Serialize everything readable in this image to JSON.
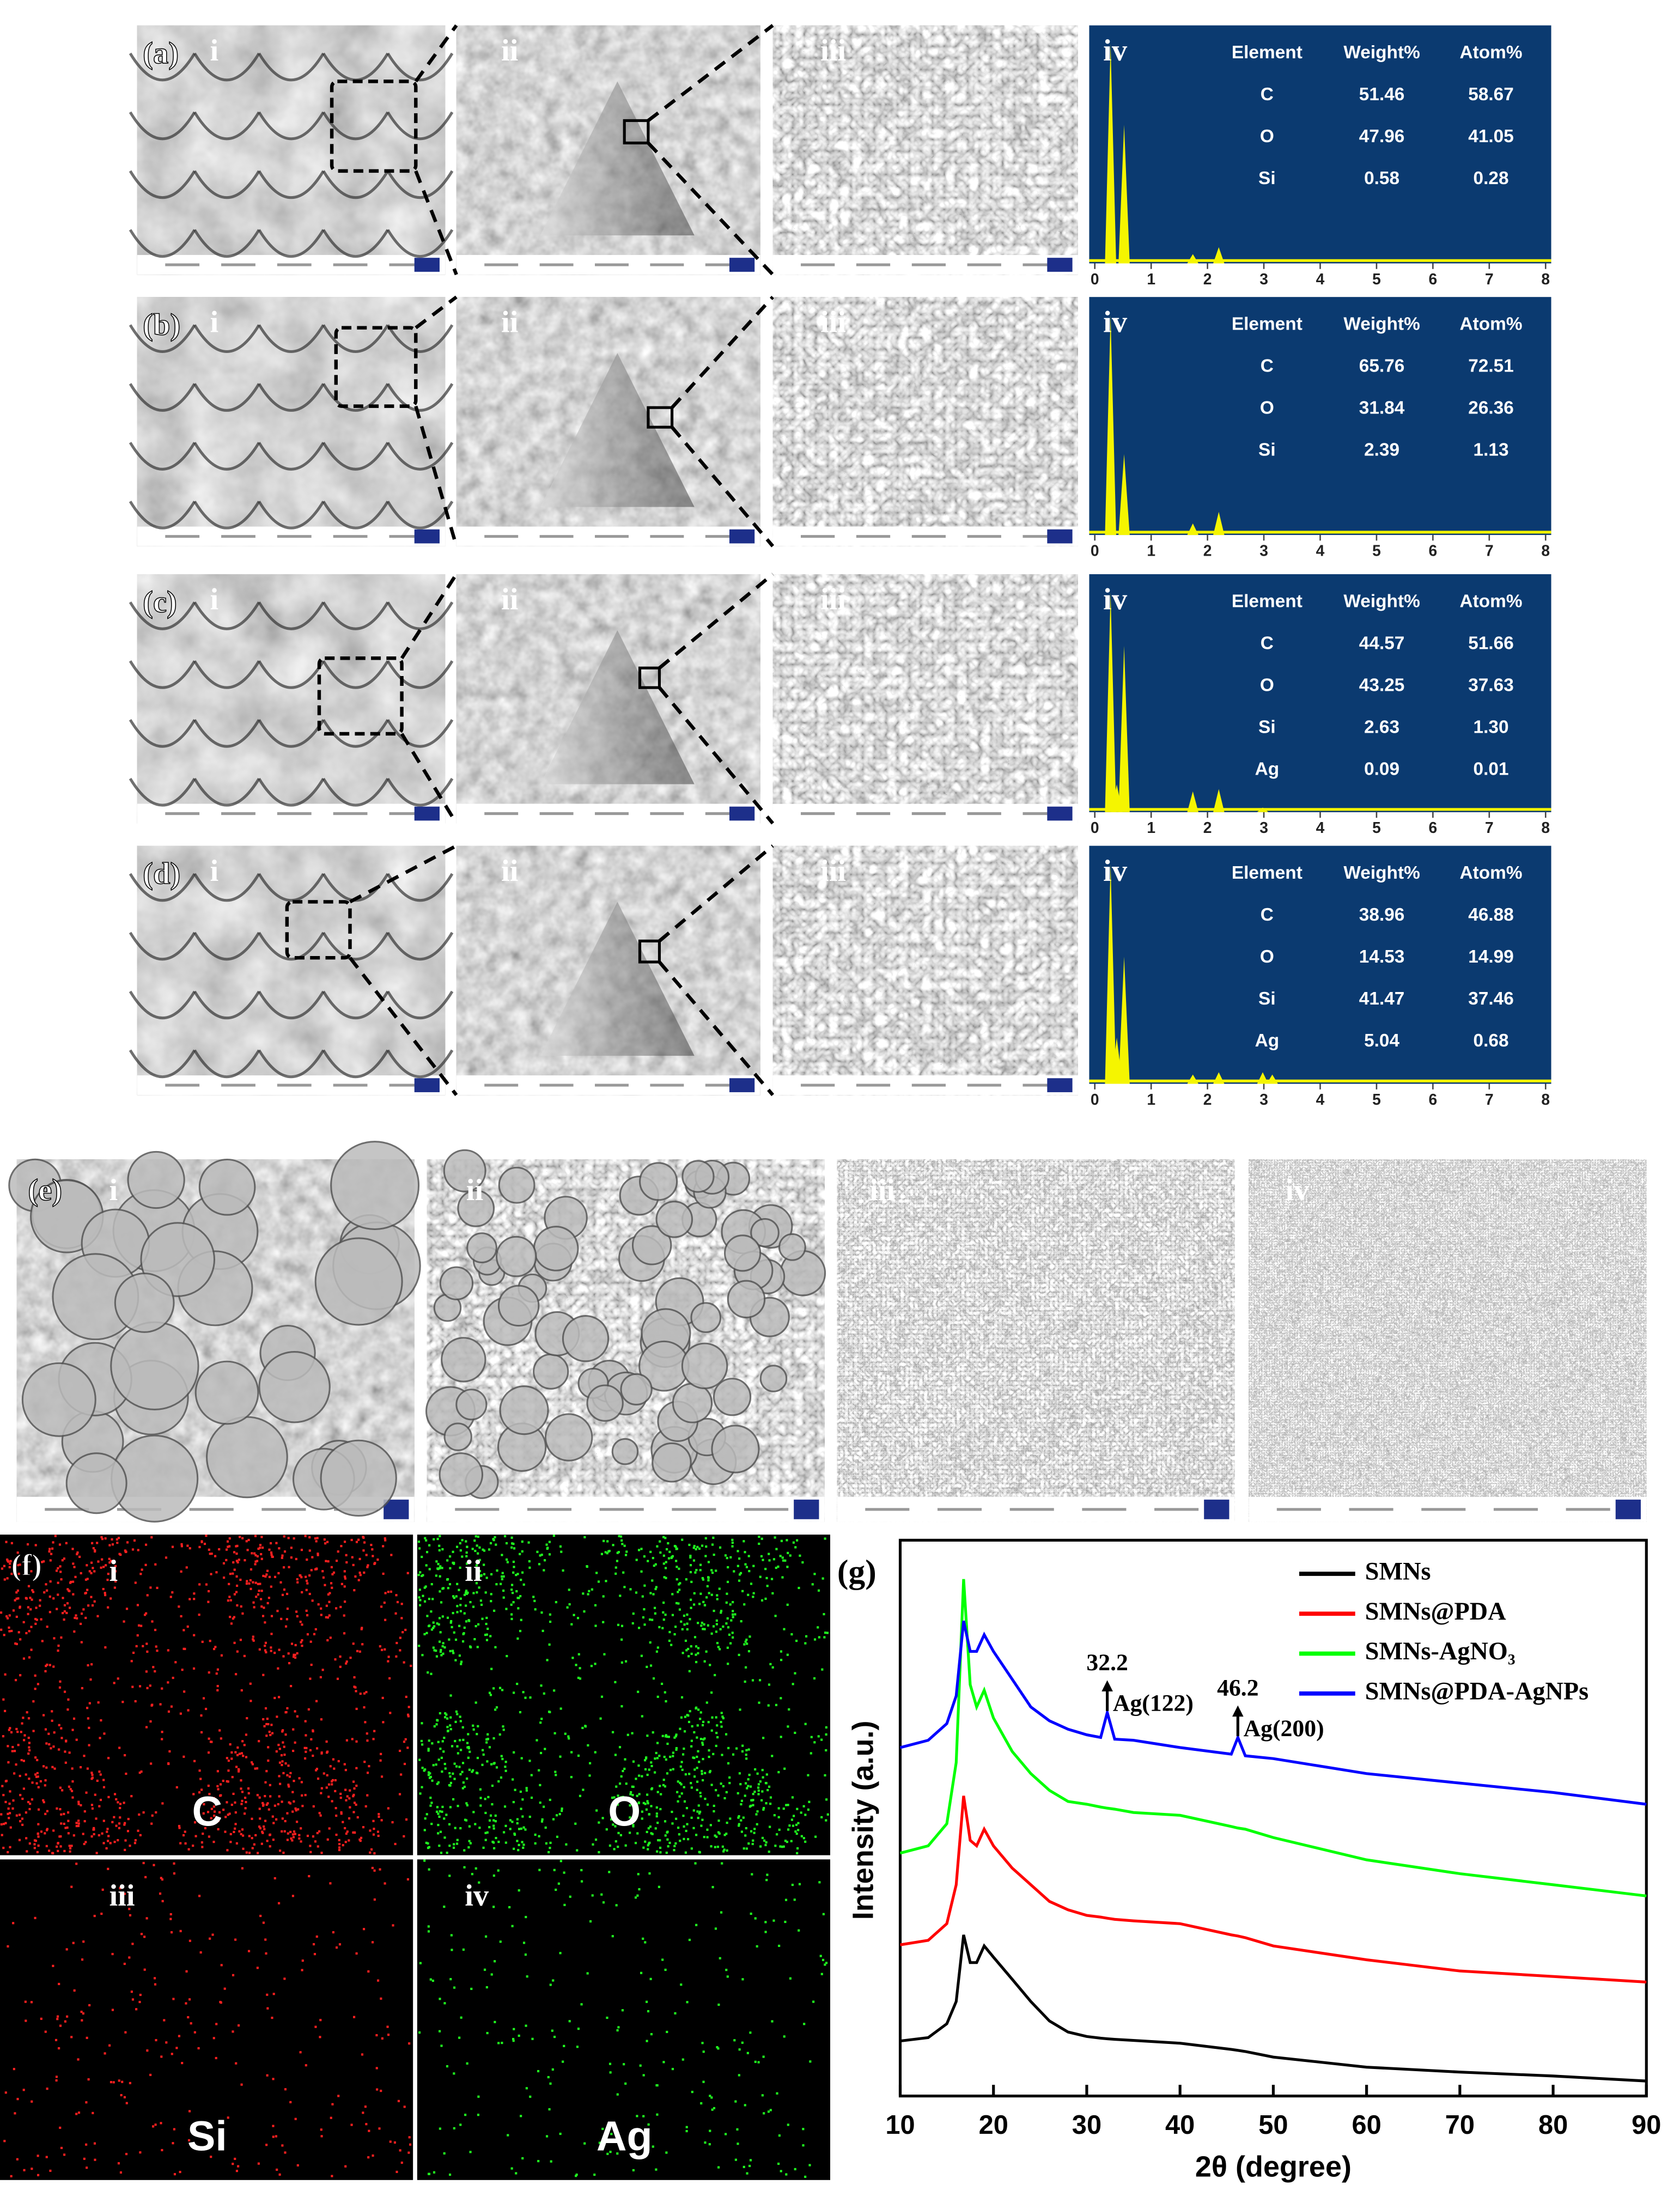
{
  "sem_rows": [
    {
      "label": "(a)",
      "sub_labels": [
        "i",
        "ii",
        "iii",
        "iv"
      ],
      "eds": {
        "header": [
          "Element",
          "Weight%",
          "Atom%"
        ],
        "rows": [
          [
            "C",
            "51.46",
            "58.67"
          ],
          [
            "O",
            "47.96",
            "41.05"
          ],
          [
            "Si",
            "0.58",
            "0.28"
          ]
        ]
      }
    },
    {
      "label": "(b)",
      "sub_labels": [
        "i",
        "ii",
        "iii",
        "iv"
      ],
      "eds": {
        "header": [
          "Element",
          "Weight%",
          "Atom%"
        ],
        "rows": [
          [
            "C",
            "65.76",
            "72.51"
          ],
          [
            "O",
            "31.84",
            "26.36"
          ],
          [
            "Si",
            "2.39",
            "1.13"
          ]
        ]
      }
    },
    {
      "label": "(c)",
      "sub_labels": [
        "i",
        "ii",
        "iii",
        "iv"
      ],
      "eds": {
        "header": [
          "Element",
          "Weight%",
          "Atom%"
        ],
        "rows": [
          [
            "C",
            "44.57",
            "51.66"
          ],
          [
            "O",
            "43.25",
            "37.63"
          ],
          [
            "Si",
            "2.63",
            "1.30"
          ],
          [
            "Ag",
            "0.09",
            "0.01"
          ]
        ]
      }
    },
    {
      "label": "(d)",
      "sub_labels": [
        "i",
        "ii",
        "iii",
        "iv"
      ],
      "eds": {
        "header": [
          "Element",
          "Weight%",
          "Atom%"
        ],
        "rows": [
          [
            "C",
            "38.96",
            "46.88"
          ],
          [
            "O",
            "14.53",
            "14.99"
          ],
          [
            "Si",
            "41.47",
            "37.46"
          ],
          [
            "Ag",
            "5.04",
            "0.68"
          ]
        ]
      }
    }
  ],
  "eds_axis_ticks": [
    0,
    1,
    2,
    3,
    4,
    5,
    6,
    7,
    8
  ],
  "panel_e": {
    "label": "(e)",
    "sub_labels": [
      "i",
      "ii",
      "iii",
      "iv"
    ]
  },
  "panel_f": {
    "label": "(f)",
    "sub_labels": [
      "i",
      "ii",
      "iii",
      "iv"
    ],
    "elements": [
      "C",
      "O",
      "Si",
      "Ag"
    ]
  },
  "chart_data": {
    "type": "line",
    "panel_label": "(g)",
    "xlabel": "2θ (degree)",
    "ylabel": "Intensity (a.u.)",
    "x": [
      10,
      13,
      15,
      16,
      16.8,
      17.5,
      18.2,
      19,
      20,
      22,
      24,
      26,
      28,
      30,
      31.5,
      32.2,
      33,
      35,
      40,
      45.5,
      46.2,
      47,
      50,
      60,
      70,
      80,
      90
    ],
    "xlim": [
      10,
      90
    ],
    "xticks": [
      10,
      20,
      30,
      40,
      50,
      60,
      70,
      80,
      90
    ],
    "ylim": [
      0,
      100
    ],
    "legend": "upper right",
    "series": [
      {
        "name": "SMNs",
        "color": "#000000",
        "values": [
          9.9,
          10.5,
          13,
          17,
          29,
          24,
          24,
          27,
          25,
          21,
          17,
          13.5,
          11.5,
          10.7,
          10.4,
          10.3,
          10.2,
          10,
          9.5,
          8.4,
          8.2,
          8,
          7,
          5.2,
          4.3,
          3.6,
          2.7
        ]
      },
      {
        "name": "SMNs@PDA",
        "color": "#ff0000",
        "values": [
          27.2,
          28,
          31,
          38,
          54,
          46,
          45,
          48,
          45,
          41,
          38,
          35,
          33.5,
          32.5,
          32.2,
          32,
          31.8,
          31.5,
          31,
          29,
          28.8,
          28.5,
          27,
          24.5,
          22.5,
          21.5,
          20.5
        ]
      },
      {
        "name": "SMNs-AgNO₃",
        "color": "#00ff00",
        "values": [
          43.7,
          45,
          49,
          60,
          93,
          74,
          70,
          73,
          68,
          62,
          58,
          55,
          53,
          52.5,
          52,
          51.8,
          51.6,
          51,
          50.5,
          48.5,
          48.2,
          48,
          46.5,
          42.5,
          40,
          38,
          36
        ]
      },
      {
        "name": "SMNs@PDA-AgNPs",
        "color": "#0000ff",
        "values": [
          62.7,
          64,
          67,
          72,
          85.5,
          80,
          80,
          83,
          80,
          75,
          70,
          67.5,
          66,
          65,
          64.5,
          69,
          64.2,
          64,
          62.7,
          61.5,
          64.5,
          61.2,
          60.7,
          58,
          56.3,
          54.6,
          52.5
        ]
      }
    ],
    "annotations": [
      {
        "x": 32.2,
        "label": "Ag(122)"
      },
      {
        "x": 46.2,
        "label": "Ag(200)"
      }
    ]
  }
}
